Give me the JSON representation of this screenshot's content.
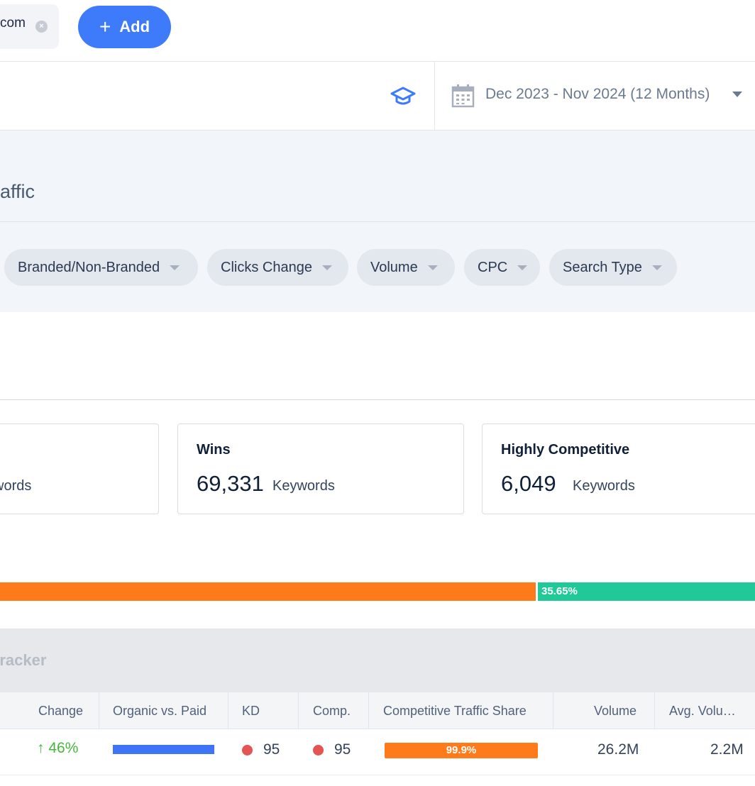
{
  "topbar": {
    "domain_chip_text": "com",
    "remove_icon": "close-circle-icon",
    "add_button_label": "Add",
    "add_icon": "plus-icon"
  },
  "date_bar": {
    "edu_icon": "graduation-cap-icon",
    "calendar_icon": "calendar-icon",
    "date_range": "Dec 2023 - Nov 2024 (12 Months)"
  },
  "panel": {
    "title": "affic",
    "filters": [
      {
        "label": "Branded/Non-Branded"
      },
      {
        "label": "Clicks Change"
      },
      {
        "label": "Volume"
      },
      {
        "label": "CPC"
      },
      {
        "label": "Search Type"
      }
    ]
  },
  "cards": [
    {
      "title": "",
      "value": "",
      "unit": "words"
    },
    {
      "title": "Wins",
      "value": "69,331",
      "unit": "Keywords"
    },
    {
      "title": "Highly Competitive",
      "value": "6,049",
      "unit": "Keywords"
    }
  ],
  "traffic_split": {
    "paid_share_label": "35.65%",
    "organic_color": "#ff7a1a",
    "paid_color": "#20c997"
  },
  "table": {
    "title": "tracker",
    "columns": [
      "Change",
      "Organic vs. Paid",
      "KD",
      "Comp.",
      "Competitive Traffic Share",
      "Volume",
      "Avg. Volu…"
    ],
    "rows": [
      {
        "change": "46%",
        "change_direction": "up",
        "organic_vs_paid_organic_fraction": 1.0,
        "kd": "95",
        "comp": "95",
        "traffic_share": "99.9%",
        "volume": "26.2M",
        "avg_volume": "2.2M"
      }
    ]
  },
  "colors": {
    "accent": "#3e7bfa",
    "orange": "#ff7a1a",
    "green": "#20c997",
    "danger_dot": "#e55353",
    "positive": "#45b73d"
  }
}
